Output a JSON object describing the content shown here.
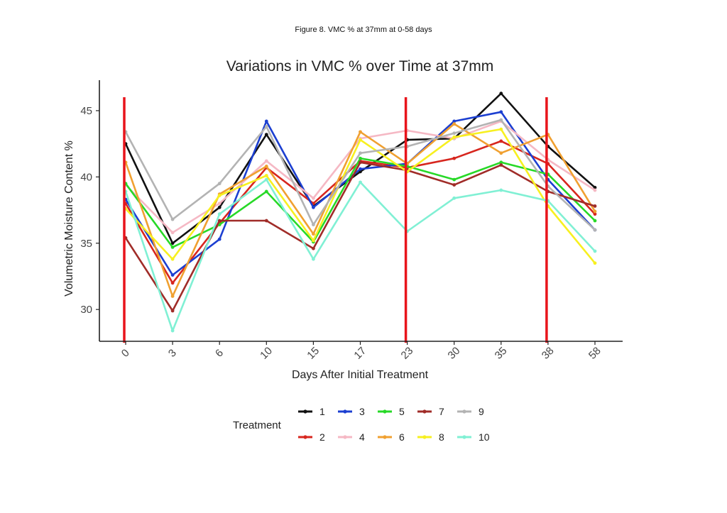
{
  "figure_caption": "Figure 8. VMC % at 37mm at 0-58 days",
  "chart_data": {
    "type": "line",
    "title": "Variations in VMC % over Time at 37mm",
    "xlabel": "Days After Initial Treatment",
    "ylabel": "Volumetric Moisture Content %",
    "categories": [
      "0",
      "3",
      "6",
      "10",
      "15",
      "17",
      "23",
      "30",
      "35",
      "38",
      "58"
    ],
    "ylim": [
      27.6,
      47.3
    ],
    "yticks": [
      30,
      35,
      40,
      45
    ],
    "grid": false,
    "legend_title": "Treatment",
    "legend_position": "bottom",
    "reference_lines_at": [
      "0",
      "23",
      "38"
    ],
    "reference_line_color": "#e8141b",
    "series": [
      {
        "name": "1",
        "color": "#111111",
        "values": [
          42.5,
          35.0,
          37.7,
          43.2,
          37.8,
          40.4,
          42.8,
          42.9,
          46.3,
          42.3,
          39.2
        ]
      },
      {
        "name": "2",
        "color": "#d7261e",
        "values": [
          38.0,
          32.0,
          36.5,
          40.7,
          38.0,
          41.2,
          40.7,
          41.4,
          42.7,
          41.0,
          37.2
        ]
      },
      {
        "name": "3",
        "color": "#1c3fd1",
        "values": [
          38.3,
          32.6,
          35.3,
          44.2,
          37.7,
          40.6,
          41.0,
          44.2,
          44.9,
          39.8,
          36.0
        ]
      },
      {
        "name": "4",
        "color": "#f5b8c4",
        "values": [
          39.4,
          35.8,
          38.0,
          41.2,
          38.4,
          42.9,
          43.5,
          42.9,
          44.2,
          41.3,
          39.0
        ]
      },
      {
        "name": "5",
        "color": "#27d927",
        "values": [
          39.5,
          34.7,
          36.4,
          38.9,
          35.1,
          41.4,
          40.8,
          39.8,
          41.1,
          40.2,
          36.7
        ]
      },
      {
        "name": "6",
        "color": "#f0a030",
        "values": [
          41.1,
          31.0,
          38.7,
          40.8,
          35.7,
          43.4,
          41.0,
          44.0,
          41.8,
          43.2,
          37.4
        ]
      },
      {
        "name": "7",
        "color": "#a02c28",
        "values": [
          35.4,
          29.9,
          36.7,
          36.7,
          34.6,
          41.1,
          40.5,
          39.4,
          40.9,
          38.9,
          37.8
        ]
      },
      {
        "name": "8",
        "color": "#f7f020",
        "values": [
          37.6,
          33.8,
          38.6,
          40.1,
          35.2,
          42.8,
          40.4,
          43.0,
          43.6,
          37.8,
          33.5
        ]
      },
      {
        "name": "9",
        "color": "#b3b3b3",
        "values": [
          43.4,
          36.8,
          39.5,
          43.8,
          36.4,
          41.8,
          42.3,
          43.3,
          44.3,
          39.3,
          36.0
        ]
      },
      {
        "name": "10",
        "color": "#80f0d4",
        "values": [
          38.9,
          28.4,
          37.2,
          39.8,
          33.8,
          39.6,
          35.9,
          38.4,
          39.0,
          38.2,
          34.4
        ]
      }
    ]
  }
}
